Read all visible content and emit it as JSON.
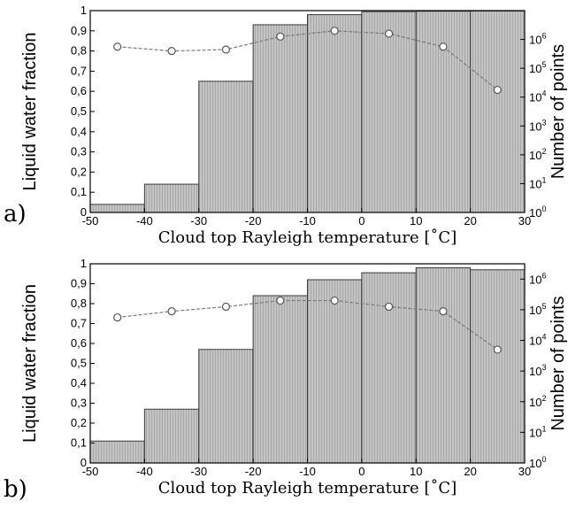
{
  "chart_data": [
    {
      "panel": "a)",
      "type": "bar",
      "xlabel": "Cloud top Rayleigh temperature [˚C]",
      "ylabel": "Liquid water fraction",
      "y2label": "Number of points",
      "xlim": [
        -50,
        30
      ],
      "ylim": [
        0,
        1
      ],
      "y2lim_log10": [
        0,
        7
      ],
      "x_ticks": [
        "-50",
        "-40",
        "-30",
        "-20",
        "-10",
        "0",
        "10",
        "20",
        "30"
      ],
      "y_ticks": [
        "0",
        "0,1",
        "0,2",
        "0,3",
        "0,4",
        "0,5",
        "0,6",
        "0,7",
        "0,8",
        "0,9",
        "1"
      ],
      "y2_ticks": [
        {
          "base": "10",
          "exp": "0"
        },
        {
          "base": "10",
          "exp": "1"
        },
        {
          "base": "10",
          "exp": "2"
        },
        {
          "base": "10",
          "exp": "3"
        },
        {
          "base": "10",
          "exp": "4"
        },
        {
          "base": "10",
          "exp": "5"
        },
        {
          "base": "10",
          "exp": "6"
        }
      ],
      "bins": [
        {
          "x0": -50,
          "x1": -40,
          "value": 0.04
        },
        {
          "x0": -40,
          "x1": -30,
          "value": 0.14
        },
        {
          "x0": -30,
          "x1": -20,
          "value": 0.65
        },
        {
          "x0": -20,
          "x1": -10,
          "value": 0.93
        },
        {
          "x0": -10,
          "x1": 0,
          "value": 0.98
        },
        {
          "x0": 0,
          "x1": 10,
          "value": 0.995
        },
        {
          "x0": 10,
          "x1": 20,
          "value": 0.997
        },
        {
          "x0": 20,
          "x1": 30,
          "value": 0.998
        }
      ],
      "points_series": {
        "x": [
          -45,
          -35,
          -25,
          -15,
          -5,
          5,
          15,
          25
        ],
        "log10_count": [
          5.75,
          5.6,
          5.65,
          6.1,
          6.3,
          6.2,
          5.75,
          4.25
        ]
      }
    },
    {
      "panel": "b)",
      "type": "bar",
      "xlabel": "Cloud top Rayleigh temperature [˚C]",
      "ylabel": "Liquid water fraction",
      "y2label": "Number of points",
      "xlim": [
        -50,
        30
      ],
      "ylim": [
        0,
        1
      ],
      "y2lim_log10": [
        0,
        6.5
      ],
      "x_ticks": [
        "-50",
        "-40",
        "-30",
        "-20",
        "-10",
        "0",
        "10",
        "20",
        "30"
      ],
      "y_ticks": [
        "0",
        "0,1",
        "0,2",
        "0,3",
        "0,4",
        "0,5",
        "0,6",
        "0,7",
        "0,8",
        "0,9",
        "1"
      ],
      "y2_ticks": [
        {
          "base": "10",
          "exp": "0"
        },
        {
          "base": "10",
          "exp": "1"
        },
        {
          "base": "10",
          "exp": "2"
        },
        {
          "base": "10",
          "exp": "3"
        },
        {
          "base": "10",
          "exp": "4"
        },
        {
          "base": "10",
          "exp": "5"
        },
        {
          "base": "10",
          "exp": "6"
        }
      ],
      "bins": [
        {
          "x0": -50,
          "x1": -40,
          "value": 0.11
        },
        {
          "x0": -40,
          "x1": -30,
          "value": 0.27
        },
        {
          "x0": -30,
          "x1": -20,
          "value": 0.57
        },
        {
          "x0": -20,
          "x1": -10,
          "value": 0.84
        },
        {
          "x0": -10,
          "x1": 0,
          "value": 0.92
        },
        {
          "x0": 0,
          "x1": 10,
          "value": 0.955
        },
        {
          "x0": 10,
          "x1": 20,
          "value": 0.98
        },
        {
          "x0": 20,
          "x1": 30,
          "value": 0.97
        }
      ],
      "points_series": {
        "x": [
          -45,
          -35,
          -25,
          -15,
          -5,
          5,
          15,
          25
        ],
        "log10_count": [
          4.75,
          4.95,
          5.1,
          5.3,
          5.3,
          5.1,
          4.95,
          3.7
        ]
      }
    }
  ],
  "colors": {
    "bar_fill": "#b9b9b9",
    "bar_stroke": "#3a3a3a",
    "line": "#7a7a7a",
    "marker_fill": "#ffffff",
    "marker_stroke": "#555555"
  }
}
